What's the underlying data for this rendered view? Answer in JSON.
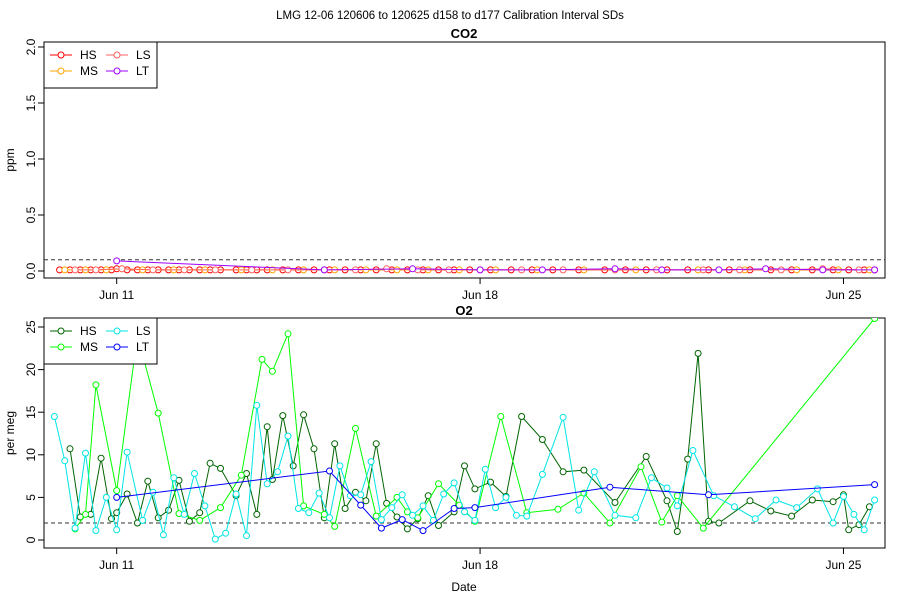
{
  "title": "LMG   12-06    120606 to 120625    d158 to d177   Calibration Interval SDs",
  "chart_data": [
    {
      "type": "line",
      "title": "CO2",
      "xlabel": "",
      "ylabel": "ppm",
      "x_ticks": [
        "Jun 11",
        "Jun 18",
        "Jun 25"
      ],
      "x_tick_days": [
        11,
        18,
        25
      ],
      "xlim": [
        9.6,
        25.8
      ],
      "ylim": [
        0,
        2.0
      ],
      "y_ticks": [
        "0.0",
        "0.5",
        "1.0",
        "1.5",
        "2.0"
      ],
      "y_tick_values": [
        0,
        0.5,
        1.0,
        1.5,
        2.0
      ],
      "reference_line": 0.1,
      "legend": {
        "position": "top-left",
        "entries": [
          "HS",
          "MS",
          "LS",
          "LT"
        ]
      },
      "series": [
        {
          "name": "HS",
          "color": "#ff0000",
          "x": [
            9.9,
            10.1,
            10.3,
            10.5,
            10.7,
            10.9,
            11.0,
            11.2,
            11.4,
            11.6,
            11.8,
            12.0,
            12.2,
            12.4,
            12.6,
            12.8,
            13.0,
            13.3,
            13.5,
            13.7,
            13.9,
            14.2,
            14.5,
            14.8,
            15.1,
            15.4,
            15.7,
            16.0,
            16.3,
            16.6,
            16.9,
            17.2,
            17.5,
            17.8,
            18.2,
            18.6,
            19.0,
            19.4,
            19.9,
            20.4,
            20.8,
            21.2,
            21.6,
            22.0,
            22.4,
            22.8,
            23.2,
            23.6,
            24.0,
            24.4,
            24.8,
            25.1,
            25.4,
            25.6
          ],
          "y": [
            0.01,
            0.01,
            0.01,
            0.01,
            0.01,
            0.01,
            0.02,
            0.01,
            0.01,
            0.01,
            0.01,
            0.01,
            0.01,
            0.01,
            0.01,
            0.01,
            0.01,
            0.01,
            0.01,
            0.01,
            0.01,
            0.01,
            0.01,
            0.01,
            0.01,
            0.01,
            0.01,
            0.01,
            0.01,
            0.01,
            0.01,
            0.01,
            0.01,
            0.01,
            0.01,
            0.01,
            0.01,
            0.01,
            0.01,
            0.01,
            0.01,
            0.01,
            0.01,
            0.01,
            0.01,
            0.01,
            0.01,
            0.01,
            0.01,
            0.01,
            0.01,
            0.01,
            0.01,
            0.01
          ]
        },
        {
          "name": "MS",
          "color": "#ffa500",
          "x": [
            10.0,
            10.4,
            10.8,
            11.1,
            11.5,
            12.1,
            12.7,
            13.4,
            14.0,
            14.6,
            15.2,
            15.8,
            16.4,
            17.0,
            17.6,
            18.3,
            19.1,
            20.0,
            21.0,
            22.2,
            23.1,
            24.1,
            24.9,
            25.5
          ],
          "y": [
            0.01,
            0.01,
            0.01,
            0.02,
            0.01,
            0.01,
            0.01,
            0.01,
            0.01,
            0.01,
            0.01,
            0.01,
            0.01,
            0.01,
            0.01,
            0.01,
            0.01,
            0.01,
            0.01,
            0.01,
            0.01,
            0.01,
            0.01,
            0.01
          ]
        },
        {
          "name": "LS",
          "color": "#ff6060",
          "x": [
            10.2,
            10.6,
            11.1,
            11.7,
            12.3,
            12.9,
            13.6,
            14.3,
            15.0,
            15.6,
            16.2,
            16.8,
            17.4,
            18.0,
            18.8,
            19.6,
            20.6,
            21.4,
            22.3,
            23.0,
            23.8,
            24.6,
            25.3
          ],
          "y": [
            0.01,
            0.01,
            0.02,
            0.01,
            0.01,
            0.01,
            0.01,
            0.01,
            0.01,
            0.01,
            0.02,
            0.01,
            0.01,
            0.01,
            0.01,
            0.01,
            0.01,
            0.01,
            0.01,
            0.01,
            0.01,
            0.02,
            0.01
          ]
        },
        {
          "name": "LT",
          "color": "#a000ff",
          "x": [
            11.0,
            15.0,
            16.7,
            18.0,
            19.2,
            20.6,
            21.5,
            22.6,
            23.5,
            24.6,
            25.6
          ],
          "y": [
            0.09,
            0.01,
            0.02,
            0.01,
            0.01,
            0.02,
            0.01,
            0.01,
            0.02,
            0.01,
            0.01
          ]
        }
      ]
    },
    {
      "type": "line",
      "title": "O2",
      "xlabel": "Date",
      "ylabel": "per meg",
      "x_ticks": [
        "Jun 11",
        "Jun 18",
        "Jun 25"
      ],
      "x_tick_days": [
        11,
        18,
        25
      ],
      "xlim": [
        9.6,
        25.8
      ],
      "ylim": [
        0,
        25
      ],
      "y_ticks": [
        "0",
        "5",
        "10",
        "15",
        "20",
        "25"
      ],
      "y_tick_values": [
        0,
        5,
        10,
        15,
        20,
        25
      ],
      "reference_line": 2,
      "legend": {
        "position": "top-left",
        "entries": [
          "HS",
          "MS",
          "LS",
          "LT"
        ]
      },
      "series": [
        {
          "name": "HS",
          "color": "#006400",
          "x": [
            10.1,
            10.3,
            10.5,
            10.7,
            10.9,
            11.0,
            11.2,
            11.4,
            11.6,
            11.8,
            12.0,
            12.2,
            12.4,
            12.6,
            12.8,
            13.0,
            13.3,
            13.5,
            13.7,
            13.9,
            14.0,
            14.2,
            14.4,
            14.6,
            14.8,
            15.0,
            15.2,
            15.4,
            15.6,
            15.8,
            16.0,
            16.2,
            16.4,
            16.6,
            16.8,
            17.0,
            17.2,
            17.5,
            17.7,
            17.9,
            18.2,
            18.5,
            18.8,
            19.2,
            19.6,
            20.0,
            20.6,
            21.2,
            21.6,
            21.8,
            22.0,
            22.2,
            22.4,
            22.6,
            23.2,
            23.6,
            24.0,
            24.4,
            24.8,
            25.0,
            25.1,
            25.3,
            25.5
          ],
          "y": [
            10.7,
            2.7,
            3.0,
            9.6,
            2.5,
            3.2,
            5.4,
            2.0,
            6.9,
            2.6,
            3.5,
            7.0,
            2.2,
            3.2,
            9.0,
            8.4,
            5.2,
            7.8,
            3.0,
            13.3,
            7.1,
            14.6,
            8.7,
            14.7,
            10.7,
            2.6,
            11.3,
            3.7,
            5.6,
            4.6,
            11.3,
            4.3,
            2.7,
            1.3,
            2.5,
            5.2,
            1.7,
            3.3,
            8.7,
            6.0,
            6.8,
            5.1,
            14.5,
            11.8,
            8.0,
            8.2,
            4.4,
            9.8,
            4.6,
            1.0,
            9.5,
            21.9,
            2.2,
            2.0,
            4.6,
            3.4,
            2.8,
            4.7,
            4.5,
            5.3,
            1.2,
            1.8,
            3.9
          ]
        },
        {
          "name": "MS",
          "color": "#00ff00",
          "x": [
            10.2,
            10.4,
            10.6,
            11.0,
            11.4,
            11.8,
            12.2,
            12.6,
            13.0,
            13.4,
            13.8,
            14.0,
            14.3,
            14.6,
            15.0,
            15.2,
            15.6,
            16.0,
            16.4,
            16.6,
            16.8,
            17.2,
            17.6,
            17.9,
            18.4,
            18.9,
            19.5,
            20.0,
            20.5,
            21.1,
            21.5,
            21.8,
            22.3,
            25.6
          ],
          "y": [
            1.3,
            3.0,
            18.2,
            5.8,
            24.0,
            14.9,
            3.1,
            2.3,
            3.8,
            7.6,
            21.2,
            19.8,
            24.2,
            4.0,
            3.0,
            1.6,
            13.1,
            2.8,
            5.0,
            3.3,
            2.6,
            6.6,
            4.1,
            2.2,
            14.5,
            3.2,
            3.6,
            5.5,
            2.0,
            8.6,
            2.1,
            5.2,
            1.4,
            26.0
          ]
        },
        {
          "name": "LS",
          "color": "#00e5e5",
          "x": [
            9.8,
            10.0,
            10.2,
            10.4,
            10.6,
            10.8,
            11.0,
            11.2,
            11.5,
            11.7,
            11.9,
            12.1,
            12.3,
            12.5,
            12.7,
            12.9,
            13.1,
            13.3,
            13.5,
            13.7,
            13.9,
            14.1,
            14.3,
            14.5,
            14.7,
            14.9,
            15.1,
            15.3,
            15.5,
            15.7,
            15.9,
            16.1,
            16.3,
            16.5,
            16.7,
            16.9,
            17.1,
            17.3,
            17.5,
            17.7,
            17.9,
            18.1,
            18.3,
            18.5,
            18.7,
            18.9,
            19.2,
            19.6,
            19.9,
            20.2,
            20.6,
            21.0,
            21.3,
            21.6,
            21.8,
            22.1,
            22.5,
            22.9,
            23.3,
            23.7,
            24.1,
            24.5,
            24.8,
            25.0,
            25.2,
            25.4,
            25.6
          ],
          "y": [
            14.5,
            9.3,
            1.4,
            10.2,
            1.1,
            5.0,
            1.2,
            10.3,
            2.3,
            5.6,
            0.6,
            7.3,
            3.0,
            7.8,
            4.0,
            0.1,
            0.8,
            5.4,
            0.5,
            15.8,
            6.6,
            8.0,
            12.2,
            3.7,
            3.2,
            5.5,
            2.6,
            8.7,
            5.2,
            5.3,
            9.2,
            2.4,
            3.8,
            5.3,
            2.9,
            4.0,
            2.3,
            5.4,
            6.7,
            3.3,
            2.3,
            8.3,
            3.8,
            5.0,
            2.9,
            2.8,
            7.7,
            14.4,
            3.5,
            8.0,
            2.9,
            2.6,
            7.3,
            6.1,
            4.0,
            10.5,
            5.2,
            3.9,
            2.5,
            4.7,
            3.8,
            6.0,
            2.0,
            5.1,
            3.0,
            1.2,
            4.7
          ]
        },
        {
          "name": "LT",
          "color": "#0000ff",
          "x": [
            11.0,
            15.1,
            15.7,
            16.1,
            16.5,
            16.9,
            17.5,
            17.9,
            20.5,
            22.4,
            25.6
          ],
          "y": [
            5.0,
            8.1,
            4.1,
            1.4,
            2.4,
            1.1,
            3.7,
            3.8,
            6.2,
            5.3,
            6.5
          ]
        }
      ]
    }
  ]
}
